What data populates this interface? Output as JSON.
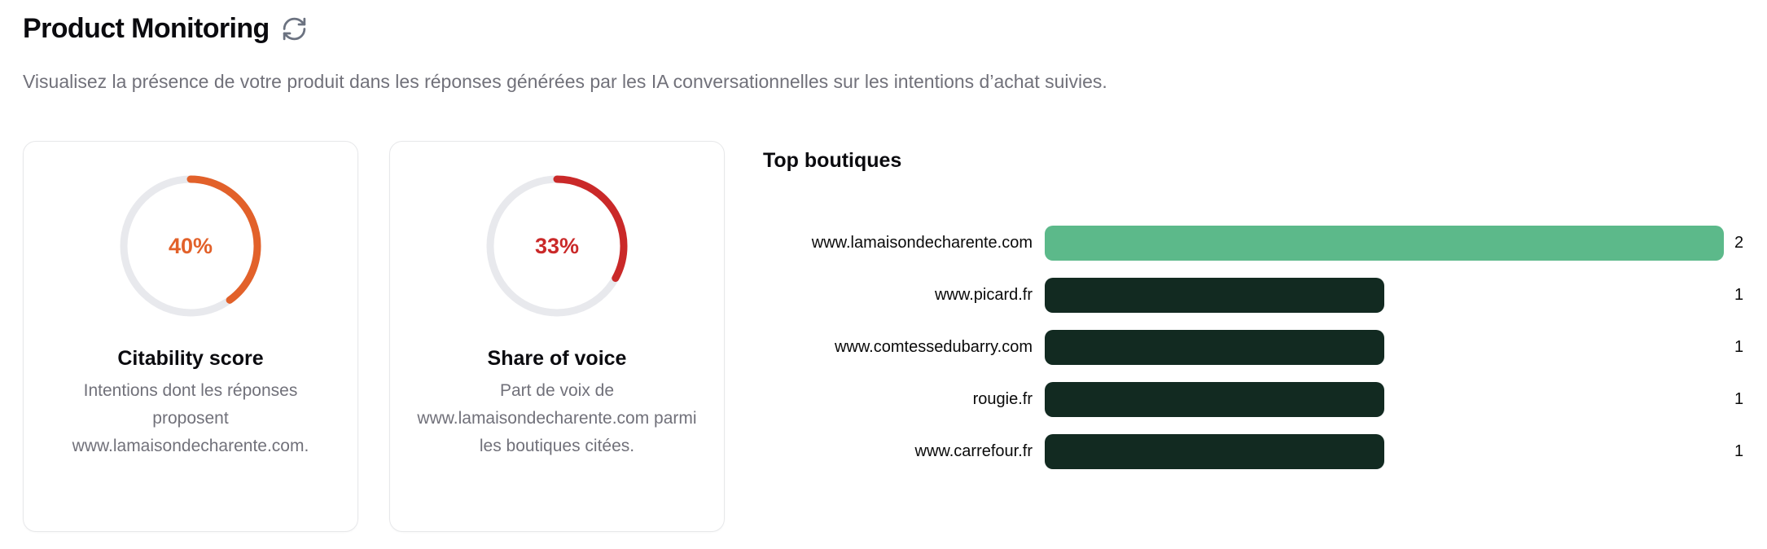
{
  "header": {
    "title": "Product Monitoring",
    "subtitle": "Visualisez la présence de votre produit dans les réponses générées par les IA conversationnelles sur les intentions d’achat suivies."
  },
  "cards": [
    {
      "title": "Citability score",
      "description": "Intentions dont les réponses proposent www.lamaisondecharente.com.",
      "percent": 40,
      "percent_label": "40%",
      "color": "#e2612a"
    },
    {
      "title": "Share of voice",
      "description": "Part de voix de www.lamaisondecharente.com parmi les boutiques citées.",
      "percent": 33,
      "percent_label": "33%",
      "color": "#ca2929"
    }
  ],
  "chart_data": {
    "type": "bar",
    "orientation": "horizontal",
    "title": "Top boutiques",
    "categories": [
      "www.lamaisondecharente.com",
      "www.picard.fr",
      "www.comtessedubarry.com",
      "rougie.fr",
      "www.carrefour.fr"
    ],
    "values": [
      2,
      1,
      1,
      1,
      1
    ],
    "xlim": [
      0,
      2
    ],
    "bar_colors": [
      "#5cb98a",
      "#122a21",
      "#122a21",
      "#122a21",
      "#122a21"
    ],
    "legend": "none",
    "grid": false
  },
  "colors": {
    "donut_track": "#e8e9ed",
    "highlight_green": "#5cb98a",
    "bar_dark": "#122a21",
    "muted_text": "#71717a"
  },
  "icons": {
    "refresh": "refresh-icon"
  }
}
